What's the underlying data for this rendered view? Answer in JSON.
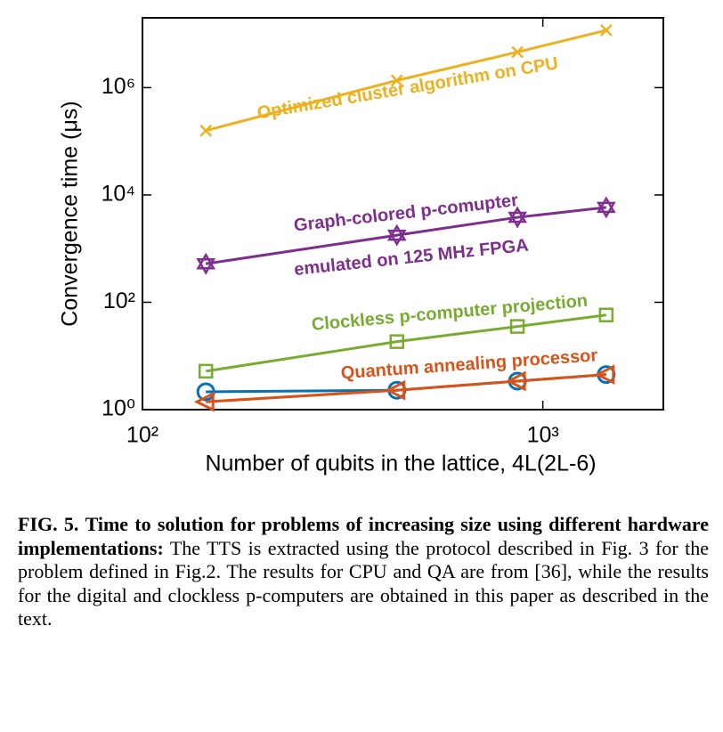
{
  "chart_data": {
    "type": "line",
    "log_x": true,
    "log_y": true,
    "x_label": "Number of qubits in the lattice, 4L(2L-6)",
    "y_label": "Convergence time (μs)",
    "xlim": [
      100,
      2000
    ],
    "ylim": [
      1,
      20000000
    ],
    "xticks": [
      {
        "value": 100,
        "label": "10²"
      },
      {
        "value": 1000,
        "label": "10³"
      }
    ],
    "yticks": [
      {
        "value": 1,
        "label": "10⁰"
      },
      {
        "value": 100,
        "label": "10²"
      },
      {
        "value": 10000,
        "label": "10⁴"
      },
      {
        "value": 1000000,
        "label": "10⁶"
      }
    ],
    "x": [
      144,
      432,
      864,
      1440
    ],
    "series": [
      {
        "color": "#EDB120",
        "marker": "x",
        "values": [
          158000,
          1360000,
          4600000,
          11700000
        ]
      },
      {
        "color": "#7E2F8E",
        "marker": "hexagram",
        "values": [
          522,
          1780,
          3830,
          5860
        ]
      },
      {
        "color": "#77AC30",
        "marker": "square",
        "values": [
          5.2,
          18.5,
          35.5,
          58
        ]
      },
      {
        "color": "#0072BD",
        "marker": "circle",
        "values": [
          2.15,
          2.3,
          3.4,
          4.5
        ]
      },
      {
        "color": "#D95319",
        "marker": "triangle-left",
        "values": [
          1.4,
          2.3,
          3.4,
          4.5
        ]
      }
    ],
    "annotations": [
      {
        "text": "Optimized cluster algorithm on CPU",
        "color": "#EDB120"
      },
      {
        "text": "Graph-colored p-comupter",
        "color": "#7E2F8E"
      },
      {
        "text": "emulated on 125 MHz FPGA",
        "color": "#7E2F8E"
      },
      {
        "text": "Clockless p-computer projection",
        "color": "#77AC30"
      },
      {
        "text": "Quantum annealing processor",
        "color": "#D95319"
      }
    ]
  },
  "caption": {
    "label": "FIG. 5.",
    "title": "Time to solution for problems of increasing size using different hardware implementations:",
    "text": "The TTS is extracted using the protocol described in Fig. 3 for the problem defined in Fig.2. The results for CPU and QA are from [36], while the results for the digital and clockless p-computers are obtained in this paper as described in the text."
  }
}
